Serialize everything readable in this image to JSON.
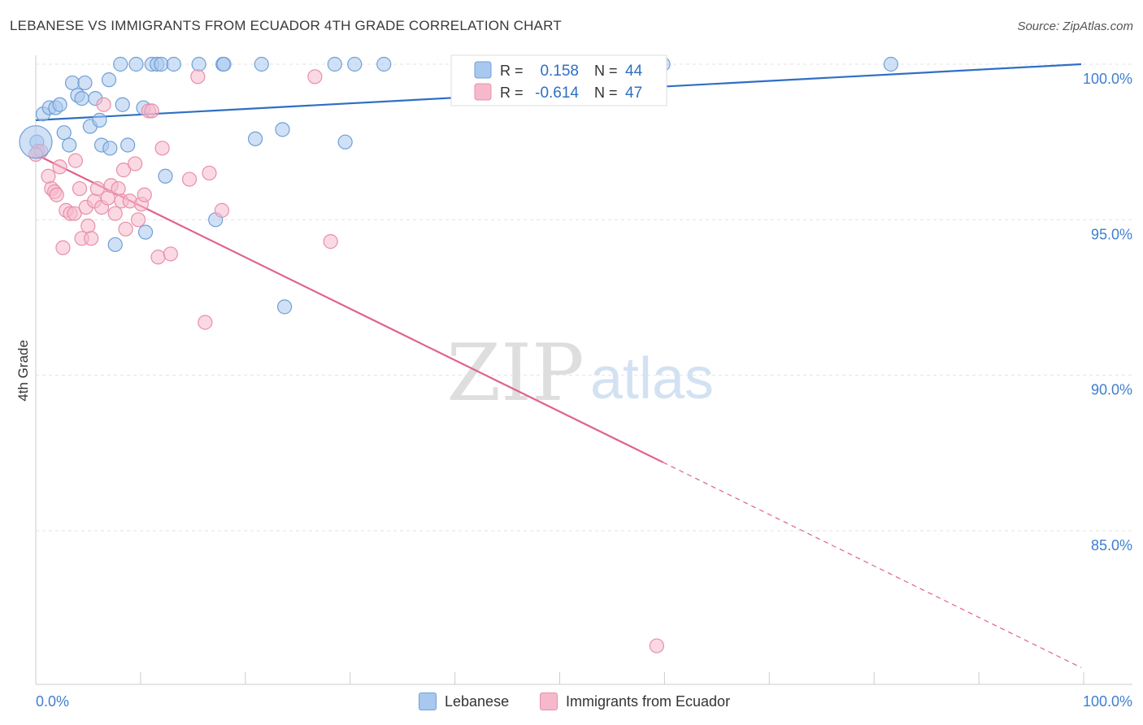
{
  "header": {
    "title": "LEBANESE VS IMMIGRANTS FROM ECUADOR 4TH GRADE CORRELATION CHART",
    "source": "Source: ZipAtlas.com"
  },
  "watermark": {
    "zip": "ZIP",
    "atlas": "atlas"
  },
  "colors": {
    "blue_fill": "#a9c8ef",
    "blue_stroke": "#6f9fd8",
    "blue_line": "#2f6fc4",
    "pink_fill": "#f6b9cc",
    "pink_stroke": "#e88fab",
    "pink_line": "#e0628c",
    "axis_text": "#3f7fd0",
    "grid": "#e3e3e3"
  },
  "legend_top": {
    "rows": [
      {
        "r_label": "R =",
        "r_value": "0.158",
        "n_label": "N =",
        "n_value": "44"
      },
      {
        "r_label": "R =",
        "r_value": "-0.614",
        "n_label": "N =",
        "n_value": "47"
      }
    ]
  },
  "legend_bottom": {
    "items": [
      {
        "label": "Lebanese"
      },
      {
        "label": "Immigrants from Ecuador"
      }
    ]
  },
  "chart_data": {
    "type": "scatter",
    "title": "LEBANESE VS IMMIGRANTS FROM ECUADOR 4TH GRADE CORRELATION CHART",
    "xlabel": "",
    "ylabel": "4th Grade",
    "xlim": [
      0,
      100
    ],
    "ylim": [
      80.5,
      100.8
    ],
    "x_tick_labels": [
      "0.0%",
      "100.0%"
    ],
    "y_ticks": [
      85,
      90,
      95,
      100
    ],
    "y_tick_labels": [
      "85.0%",
      "90.0%",
      "95.0%",
      "100.0%"
    ],
    "grid": true,
    "legend_position": "top-center",
    "series": [
      {
        "name": "Lebanese",
        "r": 0.158,
        "n": 44,
        "trend": {
          "x0": 0,
          "y0": 98.2,
          "x1": 100,
          "y1": 100.0,
          "solid_until": 100
        },
        "points": [
          [
            0.1,
            97.5
          ],
          [
            0.7,
            98.4
          ],
          [
            1.3,
            98.6
          ],
          [
            1.9,
            98.6
          ],
          [
            2.3,
            98.7
          ],
          [
            2.7,
            97.8
          ],
          [
            3.2,
            97.4
          ],
          [
            3.5,
            99.4
          ],
          [
            4.0,
            99.0
          ],
          [
            4.4,
            98.9
          ],
          [
            4.7,
            99.4
          ],
          [
            5.2,
            98.0
          ],
          [
            5.7,
            98.9
          ],
          [
            6.1,
            98.2
          ],
          [
            6.3,
            97.4
          ],
          [
            7.0,
            99.5
          ],
          [
            7.1,
            97.3
          ],
          [
            7.6,
            94.2
          ],
          [
            8.1,
            100.0
          ],
          [
            8.3,
            98.7
          ],
          [
            8.8,
            97.4
          ],
          [
            9.6,
            100.0
          ],
          [
            10.3,
            98.6
          ],
          [
            10.5,
            94.6
          ],
          [
            11.1,
            100.0
          ],
          [
            11.6,
            100.0
          ],
          [
            12.0,
            100.0
          ],
          [
            12.4,
            96.4
          ],
          [
            13.2,
            100.0
          ],
          [
            15.6,
            100.0
          ],
          [
            17.2,
            95.0
          ],
          [
            17.9,
            100.0
          ],
          [
            18.0,
            100.0
          ],
          [
            21.0,
            97.6
          ],
          [
            21.6,
            100.0
          ],
          [
            23.6,
            97.9
          ],
          [
            23.8,
            92.2
          ],
          [
            28.6,
            100.0
          ],
          [
            29.6,
            97.5
          ],
          [
            30.5,
            100.0
          ],
          [
            33.3,
            100.0
          ],
          [
            58.6,
            100.0
          ],
          [
            60.0,
            100.0
          ],
          [
            81.8,
            100.0
          ]
        ]
      },
      {
        "name": "Immigrants from Ecuador",
        "r": -0.614,
        "n": 47,
        "trend": {
          "x0": 0,
          "y0": 97.1,
          "x1": 100,
          "y1": 80.6,
          "solid_until": 60
        },
        "points": [
          [
            0.2,
            97.2
          ],
          [
            0.5,
            97.2
          ],
          [
            1.2,
            96.4
          ],
          [
            1.5,
            96.0
          ],
          [
            1.8,
            95.9
          ],
          [
            2.0,
            95.8
          ],
          [
            2.3,
            96.7
          ],
          [
            2.6,
            94.1
          ],
          [
            2.9,
            95.3
          ],
          [
            3.3,
            95.2
          ],
          [
            3.7,
            95.2
          ],
          [
            3.8,
            96.9
          ],
          [
            4.2,
            96.0
          ],
          [
            4.4,
            94.4
          ],
          [
            4.8,
            95.4
          ],
          [
            5.0,
            94.8
          ],
          [
            5.3,
            94.4
          ],
          [
            5.6,
            95.6
          ],
          [
            5.9,
            96.0
          ],
          [
            6.3,
            95.4
          ],
          [
            6.5,
            98.7
          ],
          [
            6.9,
            95.7
          ],
          [
            7.2,
            96.1
          ],
          [
            7.6,
            95.2
          ],
          [
            7.9,
            96.0
          ],
          [
            8.2,
            95.6
          ],
          [
            8.4,
            96.6
          ],
          [
            8.6,
            94.7
          ],
          [
            9.0,
            95.6
          ],
          [
            9.5,
            96.8
          ],
          [
            9.8,
            95.0
          ],
          [
            10.1,
            95.5
          ],
          [
            10.4,
            95.8
          ],
          [
            10.8,
            98.5
          ],
          [
            11.1,
            98.5
          ],
          [
            11.7,
            93.8
          ],
          [
            12.1,
            97.3
          ],
          [
            12.9,
            93.9
          ],
          [
            14.7,
            96.3
          ],
          [
            15.5,
            99.6
          ],
          [
            16.2,
            91.7
          ],
          [
            16.6,
            96.5
          ],
          [
            17.8,
            95.3
          ],
          [
            26.7,
            99.6
          ],
          [
            28.2,
            94.3
          ],
          [
            59.4,
            81.3
          ],
          [
            0.0,
            97.1
          ]
        ]
      }
    ]
  }
}
